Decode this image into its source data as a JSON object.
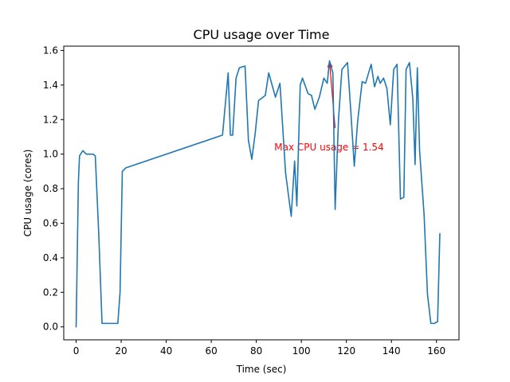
{
  "chart_data": {
    "type": "line",
    "title": "CPU usage over Time",
    "xlabel": "Time (sec)",
    "ylabel": "CPU usage (cores)",
    "xlim": [
      -5.5,
      170
    ],
    "ylim": [
      -0.075,
      1.625
    ],
    "x_ticks": [
      0,
      20,
      40,
      60,
      80,
      100,
      120,
      140,
      160
    ],
    "y_ticks": [
      0.0,
      0.2,
      0.4,
      0.6,
      0.8,
      1.0,
      1.2,
      1.4,
      1.6
    ],
    "x_tick_labels": [
      "0",
      "20",
      "40",
      "60",
      "80",
      "100",
      "120",
      "140",
      "160"
    ],
    "y_tick_labels": [
      "0.0",
      "0.2",
      "0.4",
      "0.6",
      "0.8",
      "1.0",
      "1.2",
      "1.4",
      "1.6"
    ],
    "grid": false,
    "line_color": "#1f77b4",
    "series": [
      {
        "x": [
          0,
          1,
          1.5,
          3,
          4.5,
          6,
          7.5,
          8.5,
          10,
          11.5,
          13,
          15,
          17,
          18.5,
          19.5,
          20.5,
          22,
          65,
          67.5,
          68.5,
          69.5,
          71,
          72.5,
          75,
          76.5,
          78,
          79.5,
          81,
          84,
          85.5,
          88.5,
          90.5,
          93,
          95.5,
          97,
          98,
          99.5,
          100.5,
          103,
          104.5,
          106,
          108,
          110,
          111.5,
          112.5,
          114,
          115,
          116.5,
          118,
          120.5,
          122,
          123.5,
          125,
          127,
          128.5,
          131,
          132.5,
          134,
          135,
          136.5,
          138,
          139.5,
          141,
          142.5,
          144,
          145.5,
          146.5,
          148,
          149.5,
          150.5,
          151.5,
          152.5,
          154.5,
          156,
          157.5,
          159,
          160.5,
          161.5
        ],
        "y": [
          0.0,
          0.84,
          0.99,
          1.02,
          1.0,
          1.0,
          1.0,
          0.99,
          0.55,
          0.02,
          0.02,
          0.02,
          0.02,
          0.02,
          0.2,
          0.9,
          0.92,
          1.11,
          1.47,
          1.11,
          1.11,
          1.44,
          1.5,
          1.51,
          1.08,
          0.97,
          1.12,
          1.31,
          1.34,
          1.47,
          1.33,
          1.41,
          0.89,
          0.64,
          0.96,
          0.7,
          1.4,
          1.44,
          1.35,
          1.34,
          1.26,
          1.33,
          1.44,
          1.41,
          1.54,
          1.47,
          0.68,
          1.2,
          1.49,
          1.53,
          1.24,
          0.93,
          1.19,
          1.42,
          1.41,
          1.52,
          1.39,
          1.45,
          1.41,
          1.44,
          1.38,
          1.17,
          1.49,
          1.52,
          0.74,
          0.75,
          1.49,
          1.53,
          1.32,
          0.94,
          1.5,
          1.02,
          0.65,
          0.19,
          0.02,
          0.02,
          0.03,
          0.54
        ]
      }
    ],
    "annotation": {
      "text": "Max CPU usage = 1.54",
      "color": "#ff0000",
      "point": [
        112.5,
        1.54
      ],
      "text_position": [
        88,
        1.04
      ]
    }
  }
}
